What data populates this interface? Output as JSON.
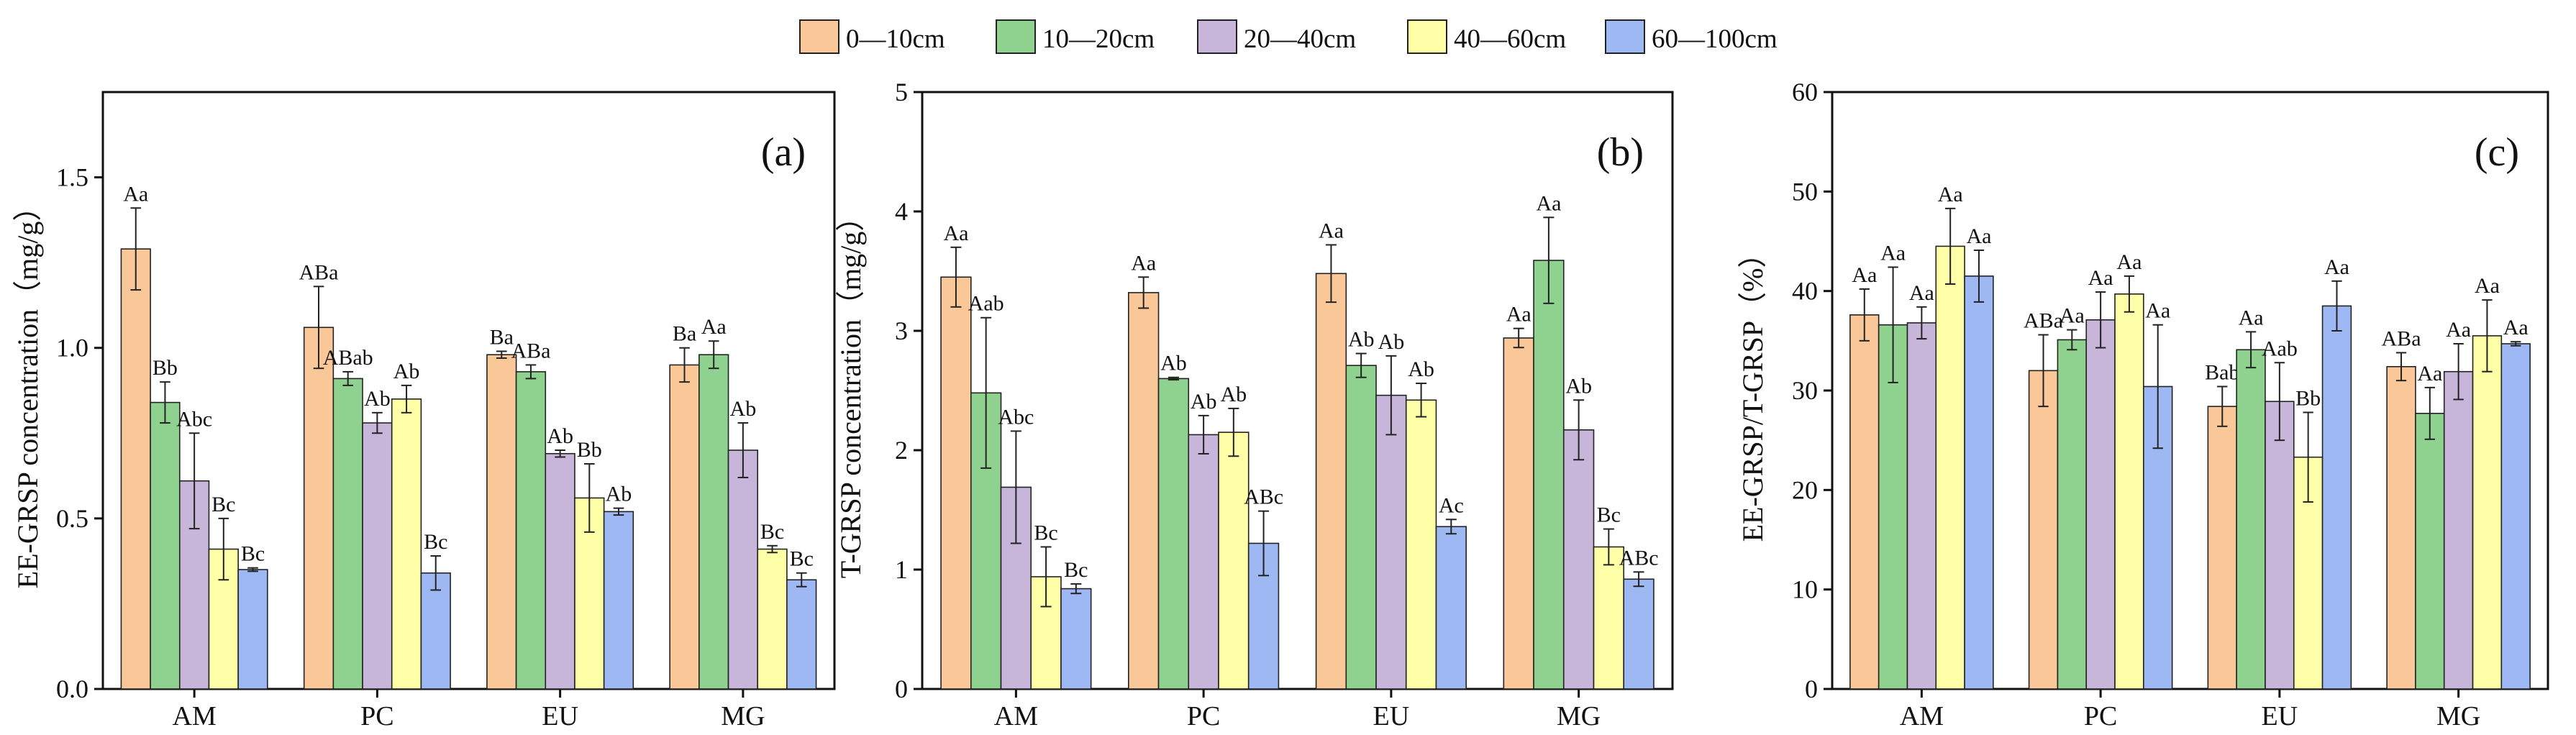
{
  "legend": [
    {
      "label": "0—10cm",
      "color": "#FAC898"
    },
    {
      "label": "10—20cm",
      "color": "#8FD18F"
    },
    {
      "label": "20—40cm",
      "color": "#C7B5DA"
    },
    {
      "label": "40—60cm",
      "color": "#FFFFA8"
    },
    {
      "label": "60—100cm",
      "color": "#9DB8F2"
    }
  ],
  "chart_data": [
    {
      "type": "bar",
      "panel_label": "(a)",
      "ylabel": "EE-GRSP concentration（mg/g）",
      "ylim": [
        0,
        1.75
      ],
      "yticks": [
        0.0,
        0.5,
        1.0,
        1.5
      ],
      "ytick_labels": [
        "0.0",
        "0.5",
        "1.0",
        "1.5"
      ],
      "categories": [
        "AM",
        "PC",
        "EU",
        "MG"
      ],
      "series": [
        {
          "name": "0—10cm",
          "values": [
            1.29,
            1.06,
            0.98,
            0.95
          ],
          "errors": [
            0.12,
            0.12,
            0.01,
            0.05
          ],
          "labels": [
            "Aa",
            "ABa",
            "Ba",
            "Ba"
          ]
        },
        {
          "name": "10—20cm",
          "values": [
            0.84,
            0.91,
            0.93,
            0.98
          ],
          "errors": [
            0.06,
            0.02,
            0.02,
            0.04
          ],
          "labels": [
            "Bb",
            "ABab",
            "ABa",
            "Aa"
          ]
        },
        {
          "name": "20—40cm",
          "values": [
            0.61,
            0.78,
            0.69,
            0.7
          ],
          "errors": [
            0.14,
            0.03,
            0.01,
            0.08
          ],
          "labels": [
            "Abc",
            "Ab",
            "Ab",
            "Ab"
          ]
        },
        {
          "name": "40—60cm",
          "values": [
            0.41,
            0.85,
            0.56,
            0.41
          ],
          "errors": [
            0.09,
            0.04,
            0.1,
            0.01
          ],
          "labels": [
            "Bc",
            "Ab",
            "Bb",
            "Bc"
          ]
        },
        {
          "name": "60—100cm",
          "values": [
            0.35,
            0.34,
            0.52,
            0.32
          ],
          "errors": [
            0.005,
            0.05,
            0.01,
            0.02
          ],
          "labels": [
            "Bc",
            "Bc",
            "Ab",
            "Bc"
          ]
        }
      ]
    },
    {
      "type": "bar",
      "panel_label": "(b)",
      "ylabel": "T-GRSP concentration（mg/g）",
      "ylim": [
        0,
        5
      ],
      "yticks": [
        0,
        1,
        2,
        3,
        4,
        5
      ],
      "ytick_labels": [
        "0",
        "1",
        "2",
        "3",
        "4",
        "5"
      ],
      "categories": [
        "AM",
        "PC",
        "EU",
        "MG"
      ],
      "series": [
        {
          "name": "0—10cm",
          "values": [
            3.45,
            3.32,
            3.48,
            2.94
          ],
          "errors": [
            0.25,
            0.13,
            0.24,
            0.08
          ],
          "labels": [
            "Aa",
            "Aa",
            "Aa",
            "Aa"
          ]
        },
        {
          "name": "10—20cm",
          "values": [
            2.48,
            2.6,
            2.71,
            3.59
          ],
          "errors": [
            0.63,
            0.01,
            0.1,
            0.36
          ],
          "labels": [
            "Aab",
            "Ab",
            "Ab",
            "Aa"
          ]
        },
        {
          "name": "20—40cm",
          "values": [
            1.69,
            2.13,
            2.46,
            2.17
          ],
          "errors": [
            0.47,
            0.16,
            0.33,
            0.25
          ],
          "labels": [
            "Abc",
            "Ab",
            "Ab",
            "Ab"
          ]
        },
        {
          "name": "40—60cm",
          "values": [
            0.94,
            2.15,
            2.42,
            1.19
          ],
          "errors": [
            0.25,
            0.2,
            0.14,
            0.15
          ],
          "labels": [
            "Bc",
            "Ab",
            "Ab",
            "Bc"
          ]
        },
        {
          "name": "60—100cm",
          "values": [
            0.84,
            1.22,
            1.36,
            0.92
          ],
          "errors": [
            0.04,
            0.27,
            0.06,
            0.06
          ],
          "labels": [
            "Bc",
            "ABc",
            "Ac",
            "ABc"
          ]
        }
      ]
    },
    {
      "type": "bar",
      "panel_label": "(c)",
      "ylabel": "EE-GRSP/T-GRSP（%）",
      "ylim": [
        0,
        60
      ],
      "yticks": [
        0,
        10,
        20,
        30,
        40,
        50,
        60
      ],
      "ytick_labels": [
        "0",
        "10",
        "20",
        "30",
        "40",
        "50",
        "60"
      ],
      "categories": [
        "AM",
        "PC",
        "EU",
        "MG"
      ],
      "series": [
        {
          "name": "0—10cm",
          "values": [
            37.6,
            32.0,
            28.4,
            32.4
          ],
          "errors": [
            2.6,
            3.6,
            2.0,
            1.4
          ],
          "labels": [
            "Aa",
            "ABa",
            "Bab",
            "ABa"
          ]
        },
        {
          "name": "10—20cm",
          "values": [
            36.6,
            35.1,
            34.1,
            27.7
          ],
          "errors": [
            5.8,
            1.0,
            1.8,
            2.6
          ],
          "labels": [
            "Aa",
            "Aa",
            "Aa",
            "Aa"
          ]
        },
        {
          "name": "20—40cm",
          "values": [
            36.8,
            37.1,
            28.9,
            31.9
          ],
          "errors": [
            1.6,
            2.8,
            3.9,
            2.8
          ],
          "labels": [
            "Aa",
            "Aa",
            "Aab",
            "Aa"
          ]
        },
        {
          "name": "40—60cm",
          "values": [
            44.5,
            39.7,
            23.3,
            35.5
          ],
          "errors": [
            3.8,
            1.8,
            4.5,
            3.6
          ],
          "labels": [
            "Aa",
            "Aa",
            "Bb",
            "Aa"
          ]
        },
        {
          "name": "60—100cm",
          "values": [
            41.5,
            30.4,
            38.5,
            34.7
          ],
          "errors": [
            2.6,
            6.2,
            2.5,
            0.2
          ],
          "labels": [
            "Aa",
            "Aa",
            "Aa",
            "Aa"
          ]
        }
      ]
    }
  ]
}
